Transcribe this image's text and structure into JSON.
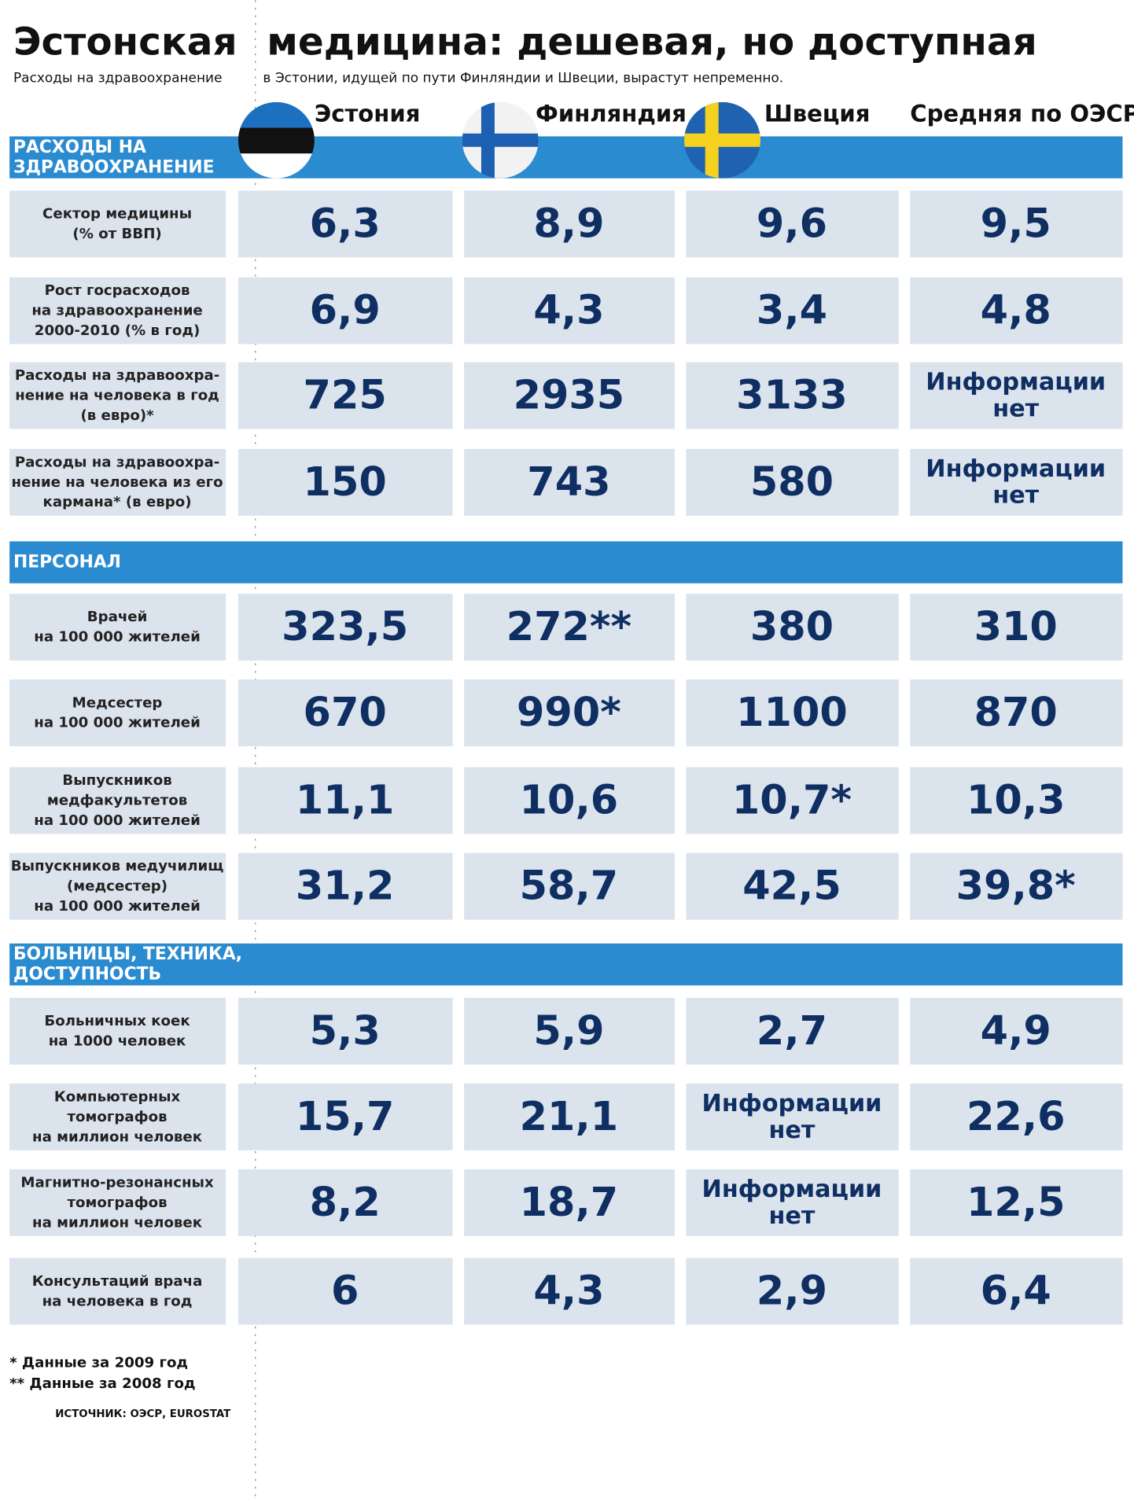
{
  "header": {
    "title_left": "Эстонская",
    "title_right": "медицина: дешевая, но доступная",
    "subtitle_left": "Расходы на здравоохранение",
    "subtitle_right": "в Эстонии, идущей по пути Финляндии и Швеции, вырастут непременно."
  },
  "columns": [
    "Эстония",
    "Финляндия",
    "Швеция",
    "Средняя по ОЭСР"
  ],
  "sections": [
    {
      "title": [
        "РАСХОДЫ НА",
        "ЗДРАВООХРАНЕНИЕ"
      ],
      "rows": [
        {
          "label": [
            "Сектор медицины",
            "(% от ВВП)"
          ],
          "values": [
            "6,3",
            "8,9",
            "9,6",
            "9,5"
          ]
        },
        {
          "label": [
            "Рост госрасходов",
            "на здравоохранение",
            "2000-2010 (% в год)"
          ],
          "values": [
            "6,9",
            "4,3",
            "3,4",
            "4,8"
          ]
        },
        {
          "label": [
            "Расходы на здравоохра-",
            "нение на человека в год",
            "(в евро)*"
          ],
          "values": [
            "725",
            "2935",
            "3133",
            [
              "Информации",
              "нет"
            ]
          ]
        },
        {
          "label": [
            "Расходы на здравоохра-",
            "нение на человека из его",
            "кармана* (в евро)"
          ],
          "values": [
            "150",
            "743",
            "580",
            [
              "Информации",
              "нет"
            ]
          ]
        }
      ]
    },
    {
      "title": [
        "ПЕРСОНАЛ"
      ],
      "rows": [
        {
          "label": [
            "Врачей",
            "на 100 000 жителей"
          ],
          "values": [
            "323,5",
            "272**",
            "380",
            "310"
          ]
        },
        {
          "label": [
            "Медсестер",
            "на 100 000 жителей"
          ],
          "values": [
            "670",
            "990*",
            "1100",
            "870"
          ]
        },
        {
          "label": [
            "Выпускников",
            "медфакультетов",
            "на 100 000 жителей"
          ],
          "values": [
            "11,1",
            "10,6",
            "10,7*",
            "10,3"
          ]
        },
        {
          "label": [
            "Выпускников медучилищ",
            "(медсестер)",
            "на 100 000 жителей"
          ],
          "values": [
            "31,2",
            "58,7",
            "42,5",
            "39,8*"
          ]
        }
      ]
    },
    {
      "title": [
        "БОЛЬНИЦЫ, ТЕХНИКА,",
        "ДОСТУПНОСТЬ"
      ],
      "rows": [
        {
          "label": [
            "Больничных коек",
            "на 1000 человек"
          ],
          "values": [
            "5,3",
            "5,9",
            "2,7",
            "4,9"
          ]
        },
        {
          "label": [
            "Компьютерных",
            "томографов",
            "на миллион человек"
          ],
          "values": [
            "15,7",
            "21,1",
            [
              "Информации",
              "нет"
            ],
            "22,6"
          ]
        },
        {
          "label": [
            "Магнитно-резонансных",
            "томографов",
            "на миллион человек"
          ],
          "values": [
            "8,2",
            "18,7",
            [
              "Информации",
              "нет"
            ],
            "12,5"
          ]
        },
        {
          "label": [
            "Консультаций врача",
            "на человека в год"
          ],
          "values": [
            "6",
            "4,3",
            "2,9",
            "6,4"
          ]
        }
      ]
    }
  ],
  "footnotes": [
    "* Данные за 2009 год",
    "** Данные за 2008 год"
  ],
  "source": "ИСТОЧНИК: ОЭСР, EUROSTAT"
}
